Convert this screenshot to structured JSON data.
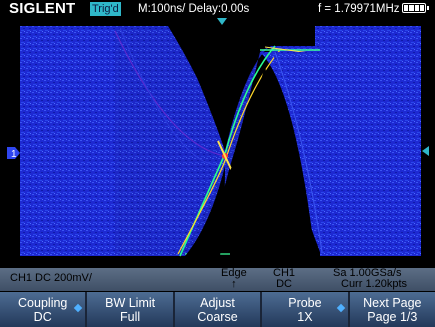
{
  "header": {
    "brand": "SIGLENT",
    "trig_state": "Trig'd",
    "timebase": "M:100ns/ Delay:0.00s",
    "frequency": "f = 1.79971MHz"
  },
  "info_bar": {
    "channel": "CH1 DC 200mV/",
    "trigger_type": "Edge",
    "trigger_slope": "↑",
    "trigger_channel": "CH1",
    "trigger_coupling": "DC",
    "sample_rate": "Sa 1.00GSa/s",
    "memory": "Curr 1.20kpts"
  },
  "softkeys": [
    {
      "top": "Coupling",
      "bottom": "DC"
    },
    {
      "top": "BW Limit",
      "bottom": "Full"
    },
    {
      "top": "Adjust",
      "bottom": "Coarse"
    },
    {
      "top": "Probe",
      "bottom": "1X"
    },
    {
      "top": "Next Page",
      "bottom": "Page 1/3"
    }
  ],
  "channel_marker": "1",
  "colors": {
    "trace_blue": "#1e2bd6",
    "trace_dense": "#2c6cf0",
    "accent_cyan": "#2fb7c9",
    "softkey_blue": "#3a5a84"
  }
}
